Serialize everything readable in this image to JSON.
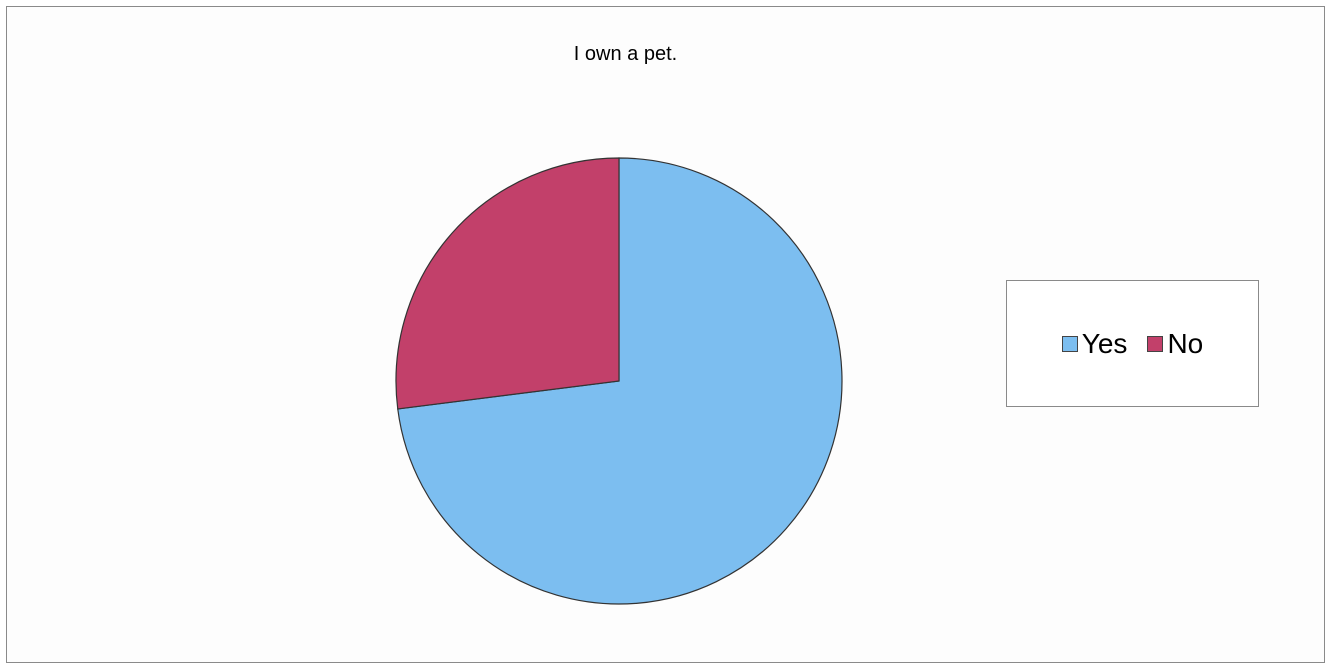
{
  "chart_data": {
    "type": "pie",
    "title": "I own a pet.",
    "categories": [
      "Yes",
      "No"
    ],
    "values": [
      73,
      27
    ],
    "colors": [
      "#7cbef0",
      "#c2406a"
    ],
    "legend": "right"
  }
}
